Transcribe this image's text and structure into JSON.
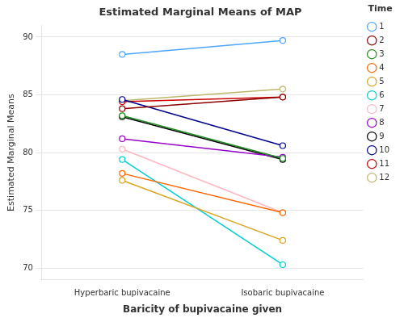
{
  "chart_data": {
    "type": "line",
    "title": "Estimated Marginal Means of MAP",
    "xlabel": "Baricity of bupivacaine given",
    "ylabel": "Estimated Marginal Means",
    "categories": [
      "Hyperbaric bupivacaine",
      "Isobaric bupivacaine"
    ],
    "series": [
      {
        "name": "1",
        "color": "#4DA6FF",
        "values": [
          88.5,
          89.7
        ]
      },
      {
        "name": "2",
        "color": "#8B0000",
        "values": [
          83.8,
          84.8
        ]
      },
      {
        "name": "3",
        "color": "#228B22",
        "values": [
          83.2,
          79.5
        ]
      },
      {
        "name": "4",
        "color": "#FF6600",
        "values": [
          78.2,
          74.8
        ]
      },
      {
        "name": "5",
        "color": "#DAA520",
        "values": [
          77.6,
          72.4
        ]
      },
      {
        "name": "6",
        "color": "#00CED1",
        "values": [
          79.4,
          70.3
        ]
      },
      {
        "name": "7",
        "color": "#FFB6C1",
        "values": [
          80.3,
          74.8
        ]
      },
      {
        "name": "8",
        "color": "#9900CC",
        "values": [
          81.2,
          79.6
        ]
      },
      {
        "name": "9",
        "color": "#000000",
        "values": [
          83.1,
          79.4
        ]
      },
      {
        "name": "10",
        "color": "#00008B",
        "values": [
          84.6,
          80.6
        ]
      },
      {
        "name": "11",
        "color": "#CC0000",
        "values": [
          84.4,
          84.8
        ]
      },
      {
        "name": "12",
        "color": "#BDB76B",
        "values": [
          84.5,
          85.5
        ]
      }
    ],
    "ylim": [
      69,
      91
    ],
    "yticks": [
      70,
      75,
      80,
      85,
      90
    ],
    "grid": "y",
    "legend": "right",
    "legend_title": "Time",
    "marker": "circle"
  }
}
